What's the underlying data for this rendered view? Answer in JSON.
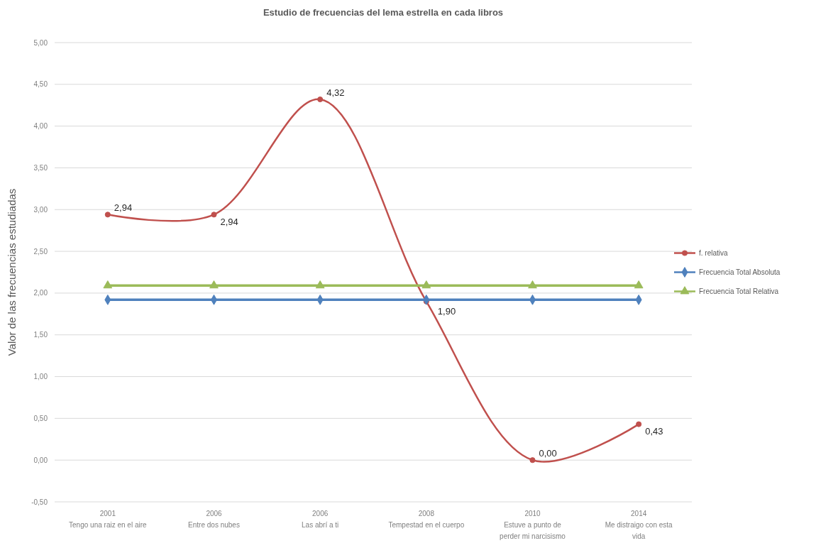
{
  "chart_data": {
    "type": "line",
    "title": "Estudio de frecuencias del lema estrella en cada libros",
    "ylabel": "Valor de las frecuencias estudiadas",
    "categories": [
      "2001\nTengo una raiz en el aire",
      "2006\nEntre dos nubes",
      "2006\nLas abrí a ti",
      "2008\nTempestad en el cuerpo",
      "2010\nEstuve a punto de\nperder mi narcisismo",
      "2014\nMe distraigo con esta\nvida"
    ],
    "series": [
      {
        "name": "f. relativa",
        "color": "#c0504d",
        "marker": "circle",
        "values": [
          2.94,
          2.94,
          4.32,
          1.9,
          0,
          0.43
        ],
        "value_labels": [
          "2,94",
          "2,94",
          "4,32",
          "1,90",
          "0,00",
          "0,43"
        ]
      },
      {
        "name": "Frecuencia Total Absoluta",
        "color": "#4f81bd",
        "marker": "diamond",
        "values": [
          1.92,
          1.92,
          1.92,
          1.92,
          1.92,
          1.92
        ]
      },
      {
        "name": "Frecuencia Total Relativa",
        "color": "#9bbb59",
        "marker": "triangle",
        "values": [
          2.09,
          2.09,
          2.09,
          2.09,
          2.09,
          2.09
        ]
      }
    ],
    "ylim": [
      -0.5,
      5
    ],
    "yticks": [
      {
        "value": -0.5,
        "label": "-0,50"
      },
      {
        "value": 0,
        "label": "0,00"
      },
      {
        "value": 0.5,
        "label": "0,50"
      },
      {
        "value": 1,
        "label": "1,00"
      },
      {
        "value": 1.5,
        "label": "1,50"
      },
      {
        "value": 2,
        "label": "2,00"
      },
      {
        "value": 2.5,
        "label": "2,50"
      },
      {
        "value": 3,
        "label": "3,00"
      },
      {
        "value": 3.5,
        "label": "3,50"
      },
      {
        "value": 4,
        "label": "4,00"
      },
      {
        "value": 4.5,
        "label": "4,50"
      },
      {
        "value": 5,
        "label": "5,00"
      }
    ],
    "grid": "y",
    "legend": "right"
  }
}
